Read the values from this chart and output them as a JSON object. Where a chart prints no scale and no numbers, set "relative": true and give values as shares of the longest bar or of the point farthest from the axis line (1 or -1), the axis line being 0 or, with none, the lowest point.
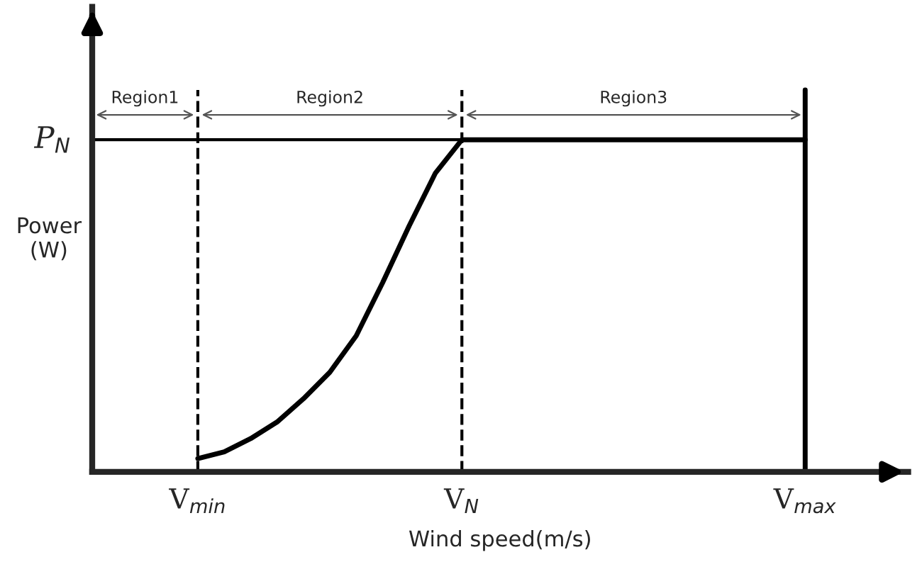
{
  "chart_data": {
    "type": "line",
    "relative": true,
    "xlabel": "Wind speed(m/s)",
    "ylabel": "Power\n(W)",
    "categories": [
      null,
      null,
      null,
      null,
      "V$_{min}$",
      null,
      null,
      null,
      null,
      null,
      null,
      null,
      null,
      null,
      "V$_{N}$",
      null,
      null,
      null,
      null,
      null,
      null,
      null,
      null,
      null,
      null,
      null,
      null,
      "V$_{max}$"
    ],
    "series": [
      {
        "color": "#000000",
        "values": [
          null,
          null,
          null,
          null,
          0.04,
          0.06,
          0.1,
          0.15,
          0.22,
          0.3,
          0.41,
          0.57,
          0.74,
          0.9,
          1,
          1,
          1,
          1,
          1,
          1,
          1,
          1,
          1,
          1,
          1,
          1,
          1,
          1
        ]
      }
    ],
    "ref_lines": [
      {
        "axis": "y",
        "value": 1,
        "label": "P$_{N}$",
        "color": "#000000",
        "line_style": "solid"
      },
      {
        "axis": "x",
        "value": "V$_{min}$",
        "label": null,
        "color": "#000000",
        "line_style": "dashed"
      },
      {
        "axis": "x",
        "value": "V$_{N}$",
        "label": null,
        "color": "#000000",
        "line_style": "dashed"
      },
      {
        "axis": "x",
        "value": "V$_{max}$",
        "label": null,
        "color": "#000000",
        "line_style": "solid"
      }
    ],
    "annotations": [
      "Region1",
      "Region2",
      "Region3"
    ],
    "grid": false,
    "legend": false
  }
}
